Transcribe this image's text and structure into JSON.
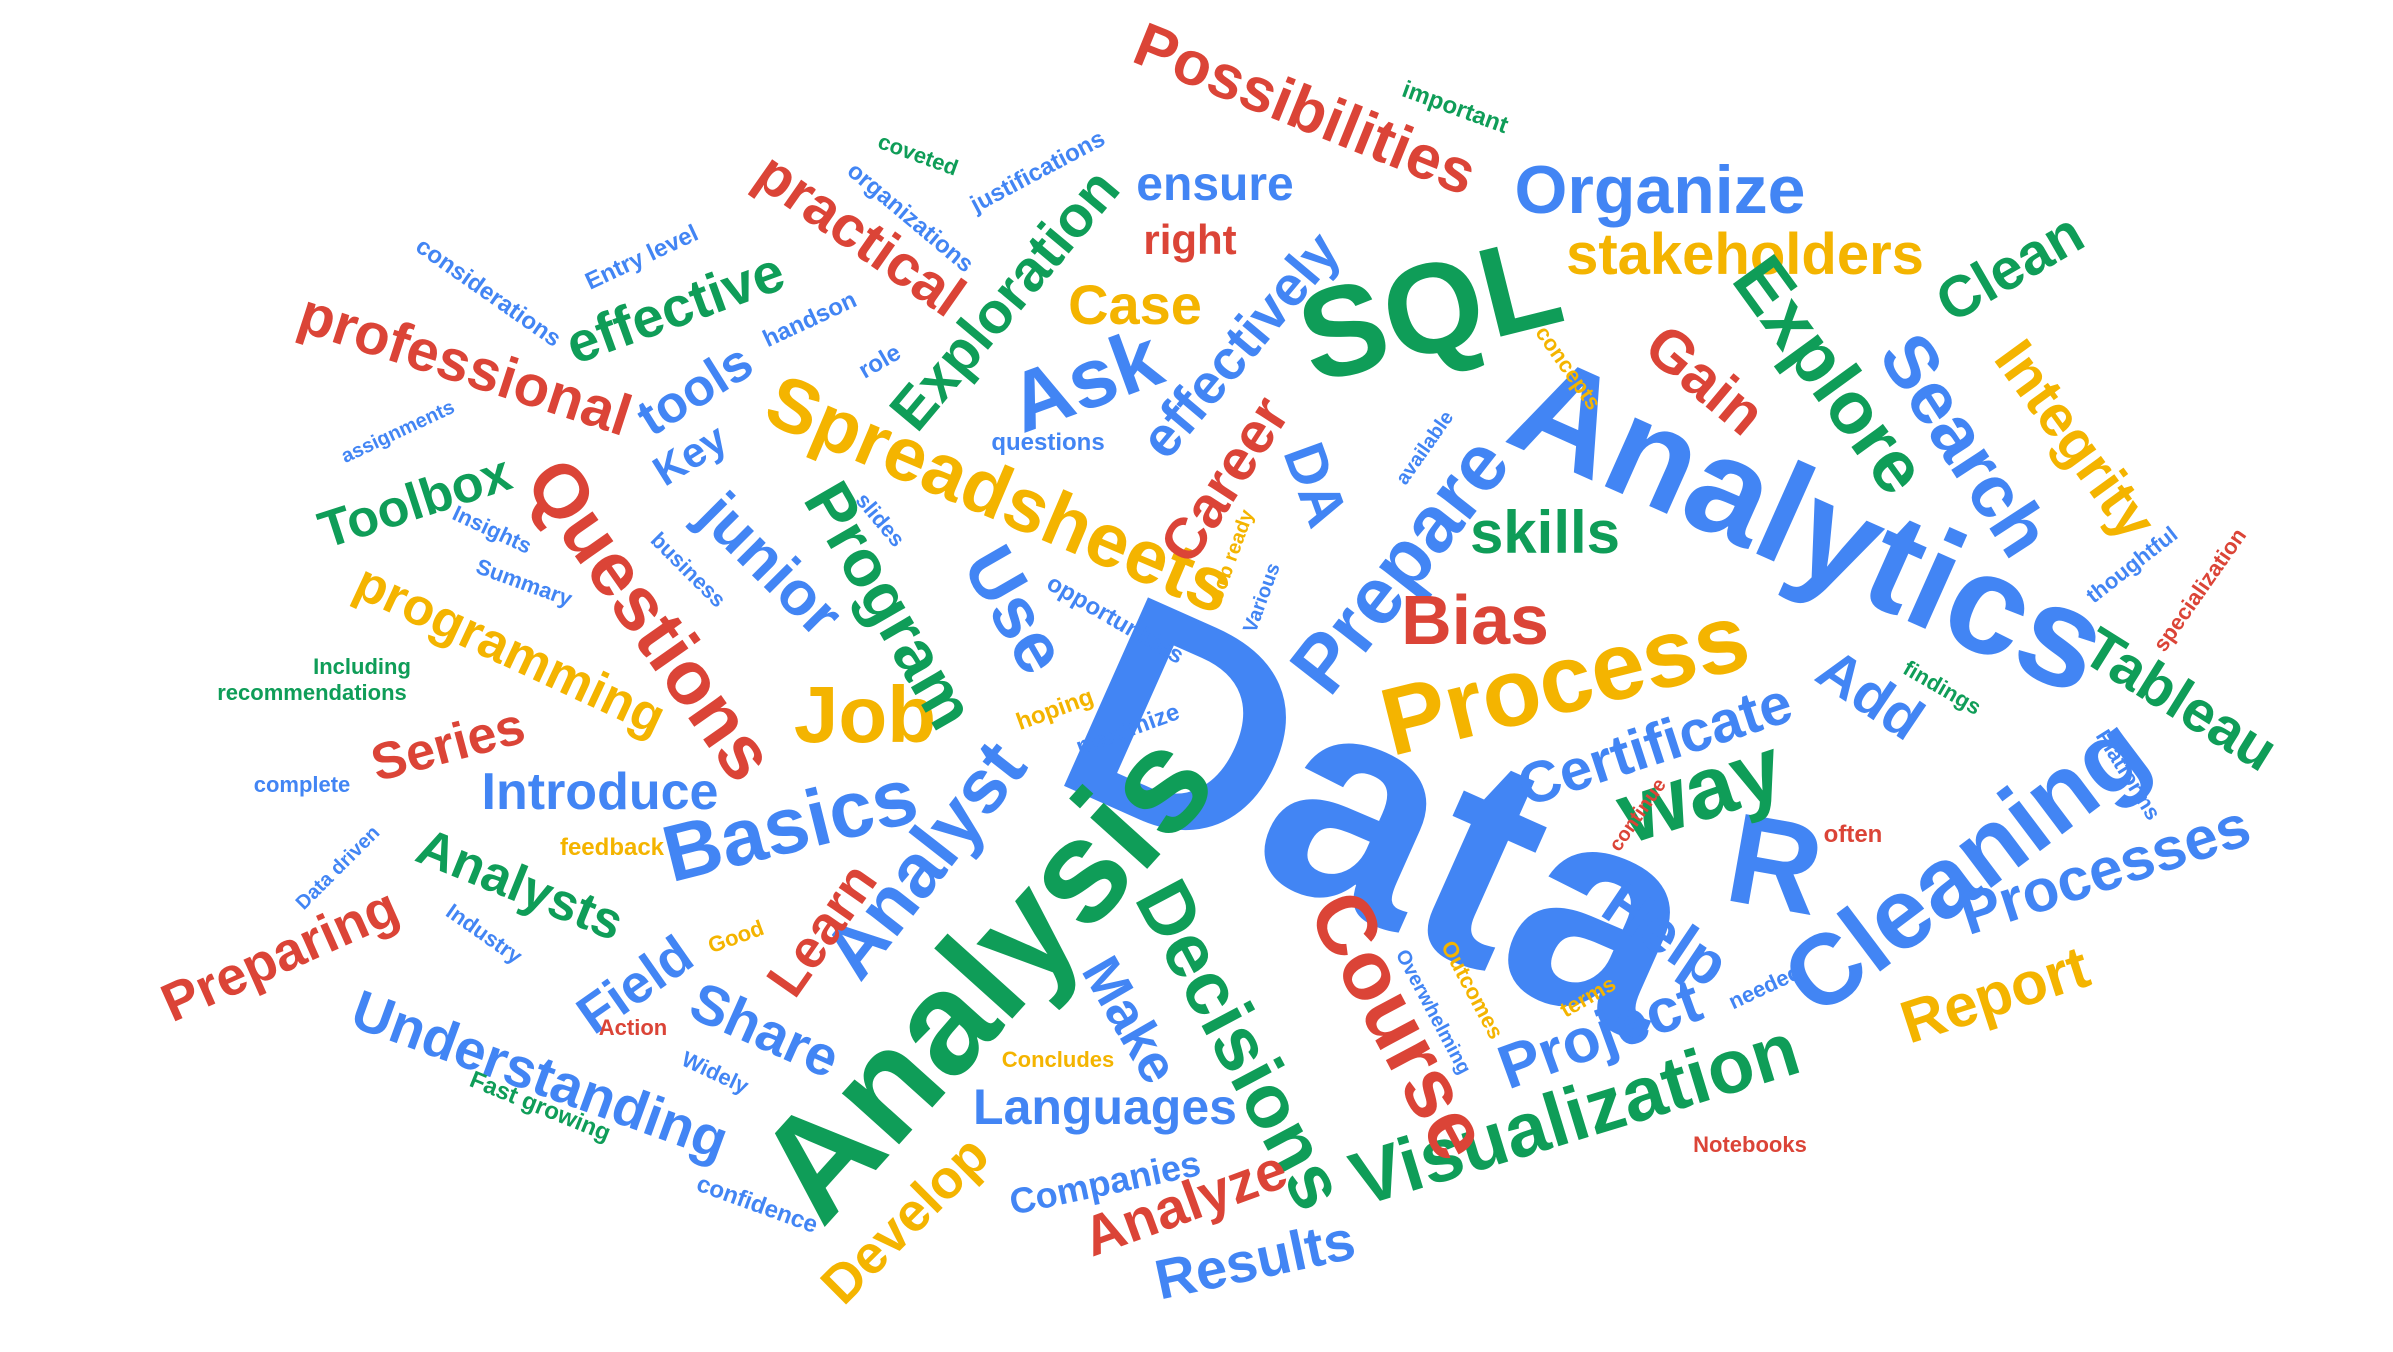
{
  "colors": {
    "blue": "#4285F4",
    "red": "#DB4437",
    "yellow": "#F4B400",
    "green": "#0F9D58",
    "background": "#FFFFFF"
  },
  "words": {
    "data": "Data",
    "analytics": "Analytics",
    "analysis": "Analysis",
    "sql": "SQL",
    "r": "R",
    "process": "Process",
    "cleaning": "Cleaning",
    "spreadsheets": "Spreadsheets",
    "visualization": "Visualization",
    "organize": "Organize",
    "possibilities": "Possibilities",
    "stakeholders": "stakeholders",
    "course": "Course",
    "decisions": "Decisions",
    "prepare": "Prepare",
    "questions_cap": "Questions",
    "job": "Job",
    "analyst": "Analyst",
    "basics": "Basics",
    "search": "Search",
    "explore": "Explore",
    "integrity": "Integrity",
    "tableau": "Tableau",
    "processes": "Processes",
    "certificate": "Certificate",
    "way": "way",
    "bias": "Bias",
    "skills": "skills",
    "gain": "Gain",
    "clean": "Clean",
    "add": "Add",
    "help": "Help",
    "project": "Project",
    "report": "Report",
    "ask": "Ask",
    "case": "Case",
    "effectively": "effectively",
    "ensure": "ensure",
    "right": "right",
    "exploration": "Exploration",
    "practical": "practical",
    "effective": "effective",
    "professional": "professional",
    "tools": "tools",
    "key": "Key",
    "toolbox": "Toolbox",
    "junior": "junior",
    "program": "Program",
    "use": "Use",
    "career": "Career",
    "da": "DA",
    "programming": "programming",
    "series": "Series",
    "introduce": "Introduce",
    "analysts": "Analysts",
    "preparing": "Preparing",
    "field": "Field",
    "learn": "Learn",
    "share": "Share",
    "understanding": "Understanding",
    "make": "Make",
    "languages": "Languages",
    "develop": "Develop",
    "companies": "Companies",
    "analyze": "Analyze",
    "results": "Results",
    "important": "important",
    "coveted": "coveted",
    "organizations": "organizations",
    "justifications": "justifications",
    "considerations": "considerations",
    "entry_level": "Entry level",
    "handson": "handson",
    "role": "role",
    "assignments": "assignments",
    "questions_small": "questions",
    "concepts": "concepts",
    "available": "available",
    "slides": "slides",
    "insights": "Insights",
    "summary": "Summary",
    "business": "business",
    "job_ready": "Job ready",
    "various": "Various",
    "opportunities": "opportunities",
    "including": "Including",
    "recommendations": "recommendations",
    "hoping": "hoping",
    "maximize": "maximize",
    "complete": "complete",
    "feedback": "feedback",
    "data_driven": "Data driven",
    "industry": "Industry",
    "good": "Good",
    "action": "Action",
    "widely": "Widely",
    "fast_growing": "Fast growing",
    "confidence": "confidence",
    "concludes": "Concludes",
    "overwhelming": "Overwhelming",
    "outcomes": "Outcomes",
    "terms": "terms",
    "needed": "needed",
    "continue": "continue",
    "often": "often",
    "findings": "findings",
    "platforms": "Platforms",
    "thoughtful": "thoughtful",
    "specialization": "specialization",
    "notebooks": "Notebooks"
  }
}
